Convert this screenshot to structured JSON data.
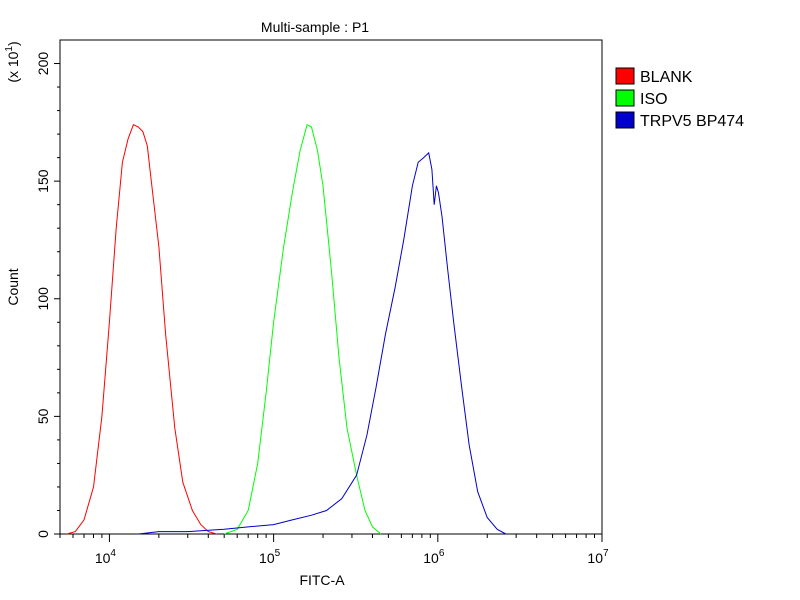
{
  "chart_data": {
    "type": "line",
    "title": "Multi-sample : P1",
    "xlabel": "FITC-A",
    "ylabel": "Count",
    "y_multiplier_label": "(x 10",
    "y_multiplier_exp": "1",
    "xscale": "log",
    "xlim": [
      5000,
      10000000
    ],
    "ylim": [
      0,
      210
    ],
    "x_ticks": [
      {
        "value": 10000,
        "base": "10",
        "exp": "4"
      },
      {
        "value": 100000,
        "base": "10",
        "exp": "5"
      },
      {
        "value": 1000000,
        "base": "10",
        "exp": "6"
      },
      {
        "value": 10000000,
        "base": "10",
        "exp": "7"
      }
    ],
    "y_ticks": [
      0,
      50,
      100,
      150,
      200
    ],
    "grid": false,
    "legend_position": "top-right",
    "series": [
      {
        "name": "BLANK",
        "color": "#ff0000",
        "points": [
          [
            5500,
            0
          ],
          [
            6200,
            1
          ],
          [
            7000,
            6
          ],
          [
            8000,
            20
          ],
          [
            9000,
            50
          ],
          [
            10000,
            90
          ],
          [
            11000,
            130
          ],
          [
            12000,
            158
          ],
          [
            13000,
            168
          ],
          [
            14000,
            174
          ],
          [
            15000,
            173
          ],
          [
            16000,
            171
          ],
          [
            17000,
            165
          ],
          [
            18000,
            150
          ],
          [
            20000,
            122
          ],
          [
            22000,
            85
          ],
          [
            25000,
            45
          ],
          [
            28000,
            22
          ],
          [
            32000,
            10
          ],
          [
            36000,
            4
          ],
          [
            40000,
            1
          ],
          [
            45000,
            0
          ]
        ]
      },
      {
        "name": "ISO",
        "color": "#00ff00",
        "points": [
          [
            50000,
            0
          ],
          [
            60000,
            2
          ],
          [
            70000,
            10
          ],
          [
            80000,
            30
          ],
          [
            90000,
            60
          ],
          [
            100000,
            90
          ],
          [
            115000,
            122
          ],
          [
            130000,
            145
          ],
          [
            145000,
            163
          ],
          [
            160000,
            174
          ],
          [
            170000,
            173
          ],
          [
            185000,
            163
          ],
          [
            200000,
            148
          ],
          [
            225000,
            112
          ],
          [
            250000,
            75
          ],
          [
            280000,
            45
          ],
          [
            320000,
            25
          ],
          [
            360000,
            10
          ],
          [
            400000,
            3
          ],
          [
            450000,
            0
          ]
        ]
      },
      {
        "name": "TRPV5 BP474",
        "color": "#0000cc",
        "points": [
          [
            15000,
            0
          ],
          [
            20000,
            1
          ],
          [
            30000,
            1
          ],
          [
            50000,
            2
          ],
          [
            70000,
            3
          ],
          [
            100000,
            4
          ],
          [
            130000,
            6
          ],
          [
            170000,
            8
          ],
          [
            210000,
            10
          ],
          [
            260000,
            15
          ],
          [
            320000,
            25
          ],
          [
            370000,
            42
          ],
          [
            420000,
            62
          ],
          [
            480000,
            85
          ],
          [
            550000,
            105
          ],
          [
            620000,
            125
          ],
          [
            700000,
            148
          ],
          [
            760000,
            158
          ],
          [
            820000,
            160
          ],
          [
            880000,
            162
          ],
          [
            920000,
            155
          ],
          [
            950000,
            140
          ],
          [
            980000,
            148
          ],
          [
            1010000,
            145
          ],
          [
            1060000,
            135
          ],
          [
            1150000,
            112
          ],
          [
            1250000,
            90
          ],
          [
            1400000,
            62
          ],
          [
            1550000,
            38
          ],
          [
            1750000,
            18
          ],
          [
            2000000,
            7
          ],
          [
            2300000,
            2
          ],
          [
            2600000,
            0
          ]
        ]
      }
    ]
  }
}
